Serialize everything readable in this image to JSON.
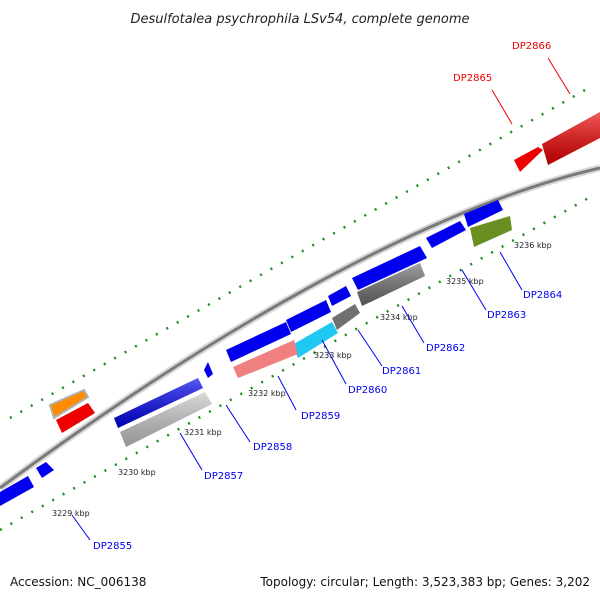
{
  "title": "Desulfotalea psychrophila LSv54, complete genome",
  "footer": {
    "accession": "Accession: NC_006138",
    "info": "Topology: circular; Length: 3,523,383 bp; Genes: 3,202"
  },
  "kbp_labels": [
    "3229 kbp",
    "3230 kbp",
    "3231 kbp",
    "3232 kbp",
    "3233 kbp",
    "3234 kbp",
    "3235 kbp",
    "3236 kbp"
  ],
  "gene_labels": [
    {
      "name": "DP2855",
      "color": "#0000ee"
    },
    {
      "name": "DP2857",
      "color": "#0000ee"
    },
    {
      "name": "DP2858",
      "color": "#0000ee"
    },
    {
      "name": "DP2859",
      "color": "#0000ee"
    },
    {
      "name": "DP2860",
      "color": "#0000ee"
    },
    {
      "name": "DP2861",
      "color": "#0000ee"
    },
    {
      "name": "DP2862",
      "color": "#0000ee"
    },
    {
      "name": "DP2863",
      "color": "#0000ee"
    },
    {
      "name": "DP2864",
      "color": "#0000ee"
    },
    {
      "name": "DP2865",
      "color": "#ee0000"
    },
    {
      "name": "DP2866",
      "color": "#ee0000"
    }
  ],
  "colors": {
    "backbone": "#8a8a8a",
    "tick": "#1e8a1e",
    "blue_feature": "#0000ee",
    "red_feature": "#ee0000"
  }
}
